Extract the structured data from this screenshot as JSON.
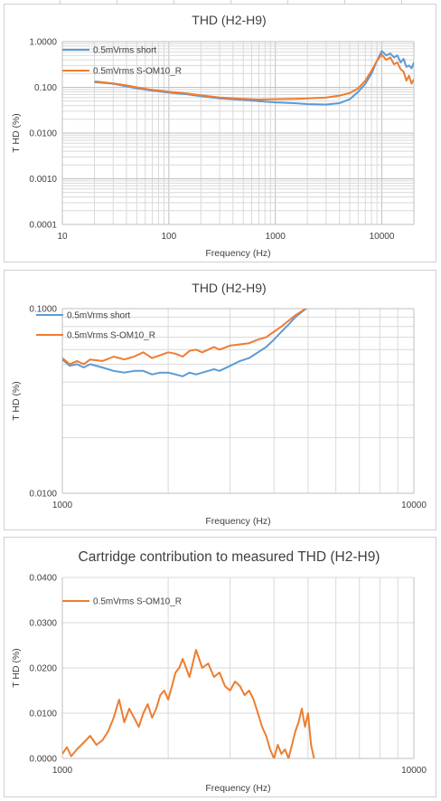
{
  "chart_data": [
    {
      "type": "line",
      "title": "THD (H2-H9)",
      "xlabel": "Frequency (Hz)",
      "ylabel": "T HD (%)",
      "xscale": "log",
      "yscale": "log",
      "xlim": [
        10,
        20000
      ],
      "ylim": [
        0.0001,
        1.0
      ],
      "xticks": [
        "10",
        "100",
        "1000",
        "10000"
      ],
      "yticks": [
        "1.0000",
        "0.100",
        "0.0100",
        "0.0010",
        "0.0001"
      ],
      "legend_position": "top-left",
      "grid": true,
      "series": [
        {
          "name": "0.5mVrms short",
          "color": "#5b9bd5",
          "x": [
            20,
            30,
            40,
            50,
            70,
            100,
            150,
            200,
            300,
            500,
            700,
            1000,
            1500,
            2000,
            3000,
            4000,
            5000,
            6000,
            7000,
            8000,
            9000,
            10000,
            11000,
            12000,
            13000,
            14000,
            15000,
            16000,
            17000,
            18000,
            19000,
            20000
          ],
          "y": [
            0.13,
            0.12,
            0.105,
            0.095,
            0.085,
            0.077,
            0.07,
            0.064,
            0.057,
            0.053,
            0.05,
            0.047,
            0.045,
            0.043,
            0.042,
            0.045,
            0.055,
            0.08,
            0.12,
            0.2,
            0.38,
            0.62,
            0.5,
            0.55,
            0.45,
            0.5,
            0.35,
            0.42,
            0.28,
            0.3,
            0.26,
            0.35
          ]
        },
        {
          "name": "0.5mVrms S-OM10_R",
          "color": "#ed7d31",
          "x": [
            20,
            30,
            40,
            50,
            70,
            100,
            150,
            200,
            300,
            500,
            700,
            1000,
            1500,
            2000,
            3000,
            4000,
            5000,
            6000,
            7000,
            8000,
            9000,
            10000,
            11000,
            12000,
            13000,
            14000,
            15000,
            16000,
            17000,
            18000,
            19000,
            20000
          ],
          "y": [
            0.135,
            0.122,
            0.11,
            0.1,
            0.088,
            0.08,
            0.073,
            0.067,
            0.06,
            0.056,
            0.054,
            0.055,
            0.056,
            0.057,
            0.06,
            0.066,
            0.075,
            0.095,
            0.14,
            0.23,
            0.38,
            0.52,
            0.4,
            0.45,
            0.32,
            0.35,
            0.25,
            0.22,
            0.14,
            0.18,
            0.12,
            0.15
          ]
        }
      ]
    },
    {
      "type": "line",
      "title": "THD (H2-H9)",
      "xlabel": "Frequency (Hz)",
      "ylabel": "T HD (%)",
      "xscale": "log",
      "yscale": "log",
      "xlim": [
        1000,
        10000
      ],
      "ylim": [
        0.01,
        0.1
      ],
      "xticks": [
        "1000",
        "10000"
      ],
      "yticks": [
        "0.1000",
        "0.0100"
      ],
      "legend_position": "top-left",
      "grid": true,
      "series": [
        {
          "name": "0.5mVrms short",
          "color": "#5b9bd5",
          "x": [
            1000,
            1050,
            1100,
            1150,
            1200,
            1300,
            1400,
            1500,
            1600,
            1700,
            1800,
            1900,
            2000,
            2100,
            2200,
            2300,
            2400,
            2500,
            2600,
            2700,
            2800,
            3000,
            3200,
            3400,
            3600,
            3800,
            4000,
            4200,
            4400,
            4600,
            4800,
            5000
          ],
          "y": [
            0.053,
            0.049,
            0.05,
            0.048,
            0.05,
            0.048,
            0.046,
            0.045,
            0.046,
            0.046,
            0.044,
            0.045,
            0.045,
            0.044,
            0.043,
            0.045,
            0.044,
            0.045,
            0.046,
            0.047,
            0.046,
            0.049,
            0.052,
            0.054,
            0.058,
            0.062,
            0.068,
            0.075,
            0.082,
            0.09,
            0.096,
            0.102
          ]
        },
        {
          "name": "0.5mVrms S-OM10_R",
          "color": "#ed7d31",
          "x": [
            1000,
            1050,
            1100,
            1150,
            1200,
            1300,
            1400,
            1500,
            1600,
            1700,
            1800,
            1900,
            2000,
            2100,
            2200,
            2300,
            2400,
            2500,
            2600,
            2700,
            2800,
            3000,
            3200,
            3400,
            3600,
            3800,
            4000,
            4200,
            4400,
            4600,
            4800,
            5000
          ],
          "y": [
            0.054,
            0.05,
            0.052,
            0.05,
            0.053,
            0.052,
            0.055,
            0.053,
            0.055,
            0.058,
            0.054,
            0.056,
            0.058,
            0.057,
            0.055,
            0.059,
            0.06,
            0.058,
            0.06,
            0.062,
            0.06,
            0.063,
            0.064,
            0.065,
            0.068,
            0.07,
            0.075,
            0.08,
            0.086,
            0.092,
            0.097,
            0.102
          ]
        }
      ]
    },
    {
      "type": "line",
      "title": "Cartridge contribution to measured THD (H2-H9)",
      "xlabel": "Frequency (Hz)",
      "ylabel": "T HD (%)",
      "xscale": "log",
      "yscale": "linear",
      "xlim": [
        1000,
        10000
      ],
      "ylim": [
        0,
        0.04
      ],
      "xticks": [
        "1000",
        "10000"
      ],
      "yticks": [
        "0.0400",
        "0.0300",
        "0.0200",
        "0.0100",
        "0.0000"
      ],
      "legend_position": "top-left",
      "grid": true,
      "series": [
        {
          "name": "0.5mVrms S-OM10_R",
          "color": "#ed7d31",
          "x": [
            1000,
            1030,
            1060,
            1100,
            1150,
            1200,
            1250,
            1300,
            1350,
            1400,
            1450,
            1500,
            1550,
            1600,
            1650,
            1700,
            1750,
            1800,
            1850,
            1900,
            1950,
            2000,
            2050,
            2100,
            2150,
            2200,
            2300,
            2400,
            2500,
            2600,
            2700,
            2800,
            2900,
            3000,
            3100,
            3200,
            3300,
            3400,
            3500,
            3600,
            3700,
            3800,
            3900,
            4000,
            4100,
            4200,
            4300,
            4400,
            4500,
            4600,
            4700,
            4800,
            4900,
            5000,
            5100,
            5200
          ],
          "y": [
            0.001,
            0.0025,
            0.0005,
            0.002,
            0.0035,
            0.005,
            0.003,
            0.004,
            0.006,
            0.009,
            0.013,
            0.008,
            0.011,
            0.009,
            0.007,
            0.01,
            0.012,
            0.009,
            0.011,
            0.014,
            0.015,
            0.013,
            0.016,
            0.019,
            0.02,
            0.022,
            0.018,
            0.024,
            0.02,
            0.021,
            0.018,
            0.019,
            0.016,
            0.015,
            0.017,
            0.016,
            0.014,
            0.015,
            0.013,
            0.01,
            0.007,
            0.005,
            0.002,
            0.0,
            0.003,
            0.001,
            0.002,
            0.0,
            0.003,
            0.006,
            0.008,
            0.011,
            0.007,
            0.01,
            0.003,
            0.0
          ]
        }
      ]
    }
  ]
}
